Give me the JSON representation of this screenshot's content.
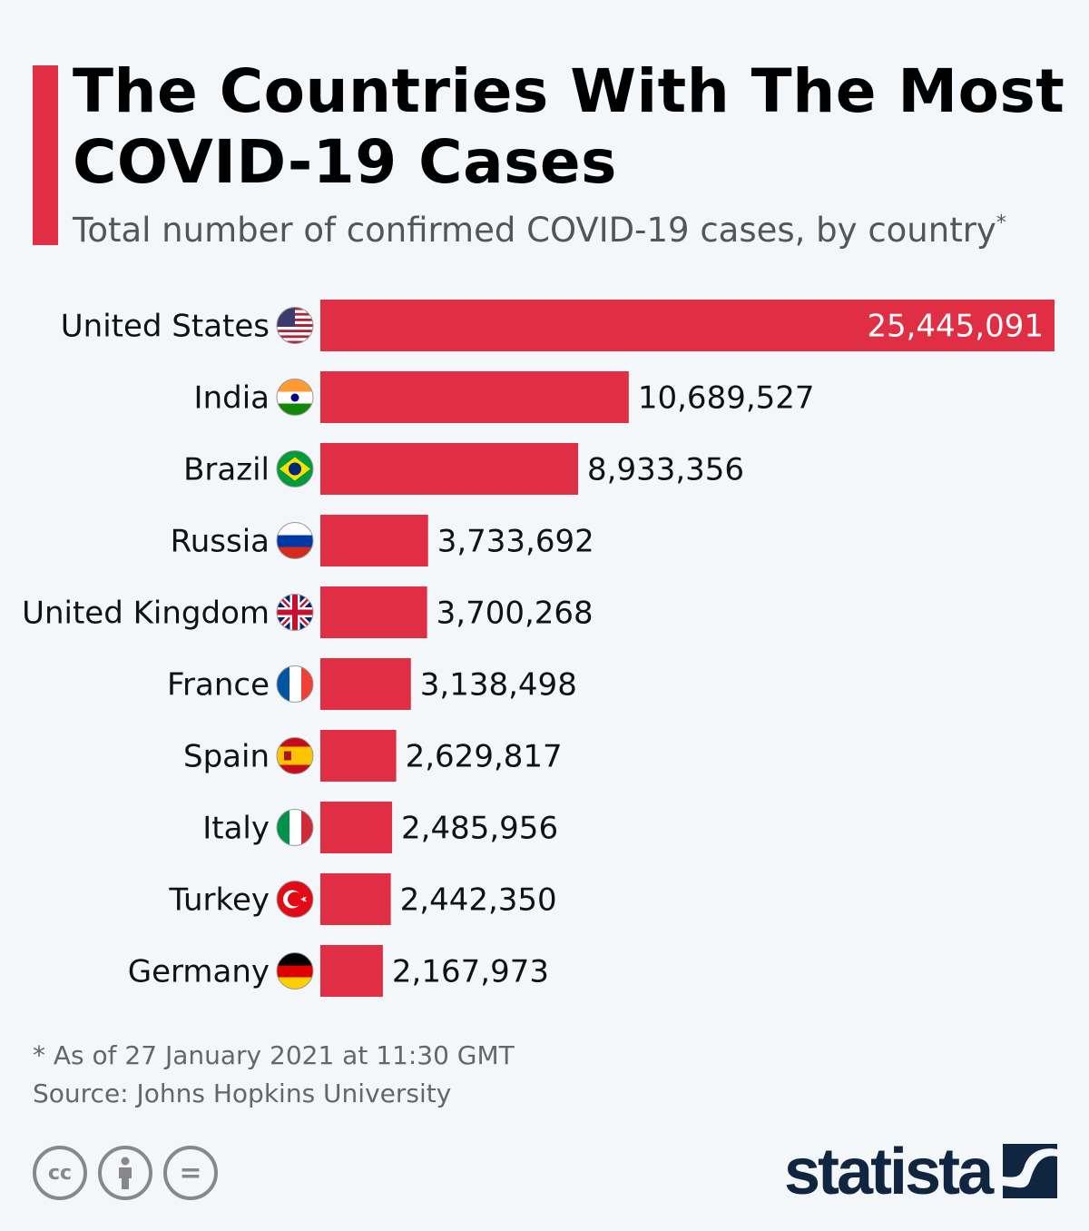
{
  "title": "The Countries With The Most COVID-19 Cases",
  "subtitle": "Total number of confirmed COVID-19 cases, by country",
  "subtitle_mark": "*",
  "footnote": "* As of 27 January 2021 at 11:30 GMT",
  "source": "Source: Johns Hopkins University",
  "license_icons": [
    "cc-icon",
    "attribution-icon",
    "no-derivatives-icon"
  ],
  "license_labels": [
    "cc",
    "",
    "="
  ],
  "brand": "statista",
  "colors": {
    "bar": "#e02f45",
    "background": "#f4f7fa",
    "brand": "#10253f",
    "accent": "#e02f45"
  },
  "chart_data": {
    "type": "bar",
    "orientation": "horizontal",
    "title": "The Countries With The Most COVID-19 Cases",
    "categories": [
      "United States",
      "India",
      "Brazil",
      "Russia",
      "United Kingdom",
      "France",
      "Spain",
      "Italy",
      "Turkey",
      "Germany"
    ],
    "values": [
      25445091,
      10689527,
      8933356,
      3733692,
      3700268,
      3138498,
      2629817,
      2485956,
      2442350,
      2167973
    ],
    "value_labels": [
      "25,445,091",
      "10,689,527",
      "8,933,356",
      "3,733,692",
      "3,700,268",
      "3,138,498",
      "2,629,817",
      "2,485,956",
      "2,442,350",
      "2,167,973"
    ],
    "flags": [
      "us-flag-icon",
      "india-flag-icon",
      "brazil-flag-icon",
      "russia-flag-icon",
      "uk-flag-icon",
      "france-flag-icon",
      "spain-flag-icon",
      "italy-flag-icon",
      "turkey-flag-icon",
      "germany-flag-icon"
    ],
    "grid": false,
    "legend": "none"
  }
}
